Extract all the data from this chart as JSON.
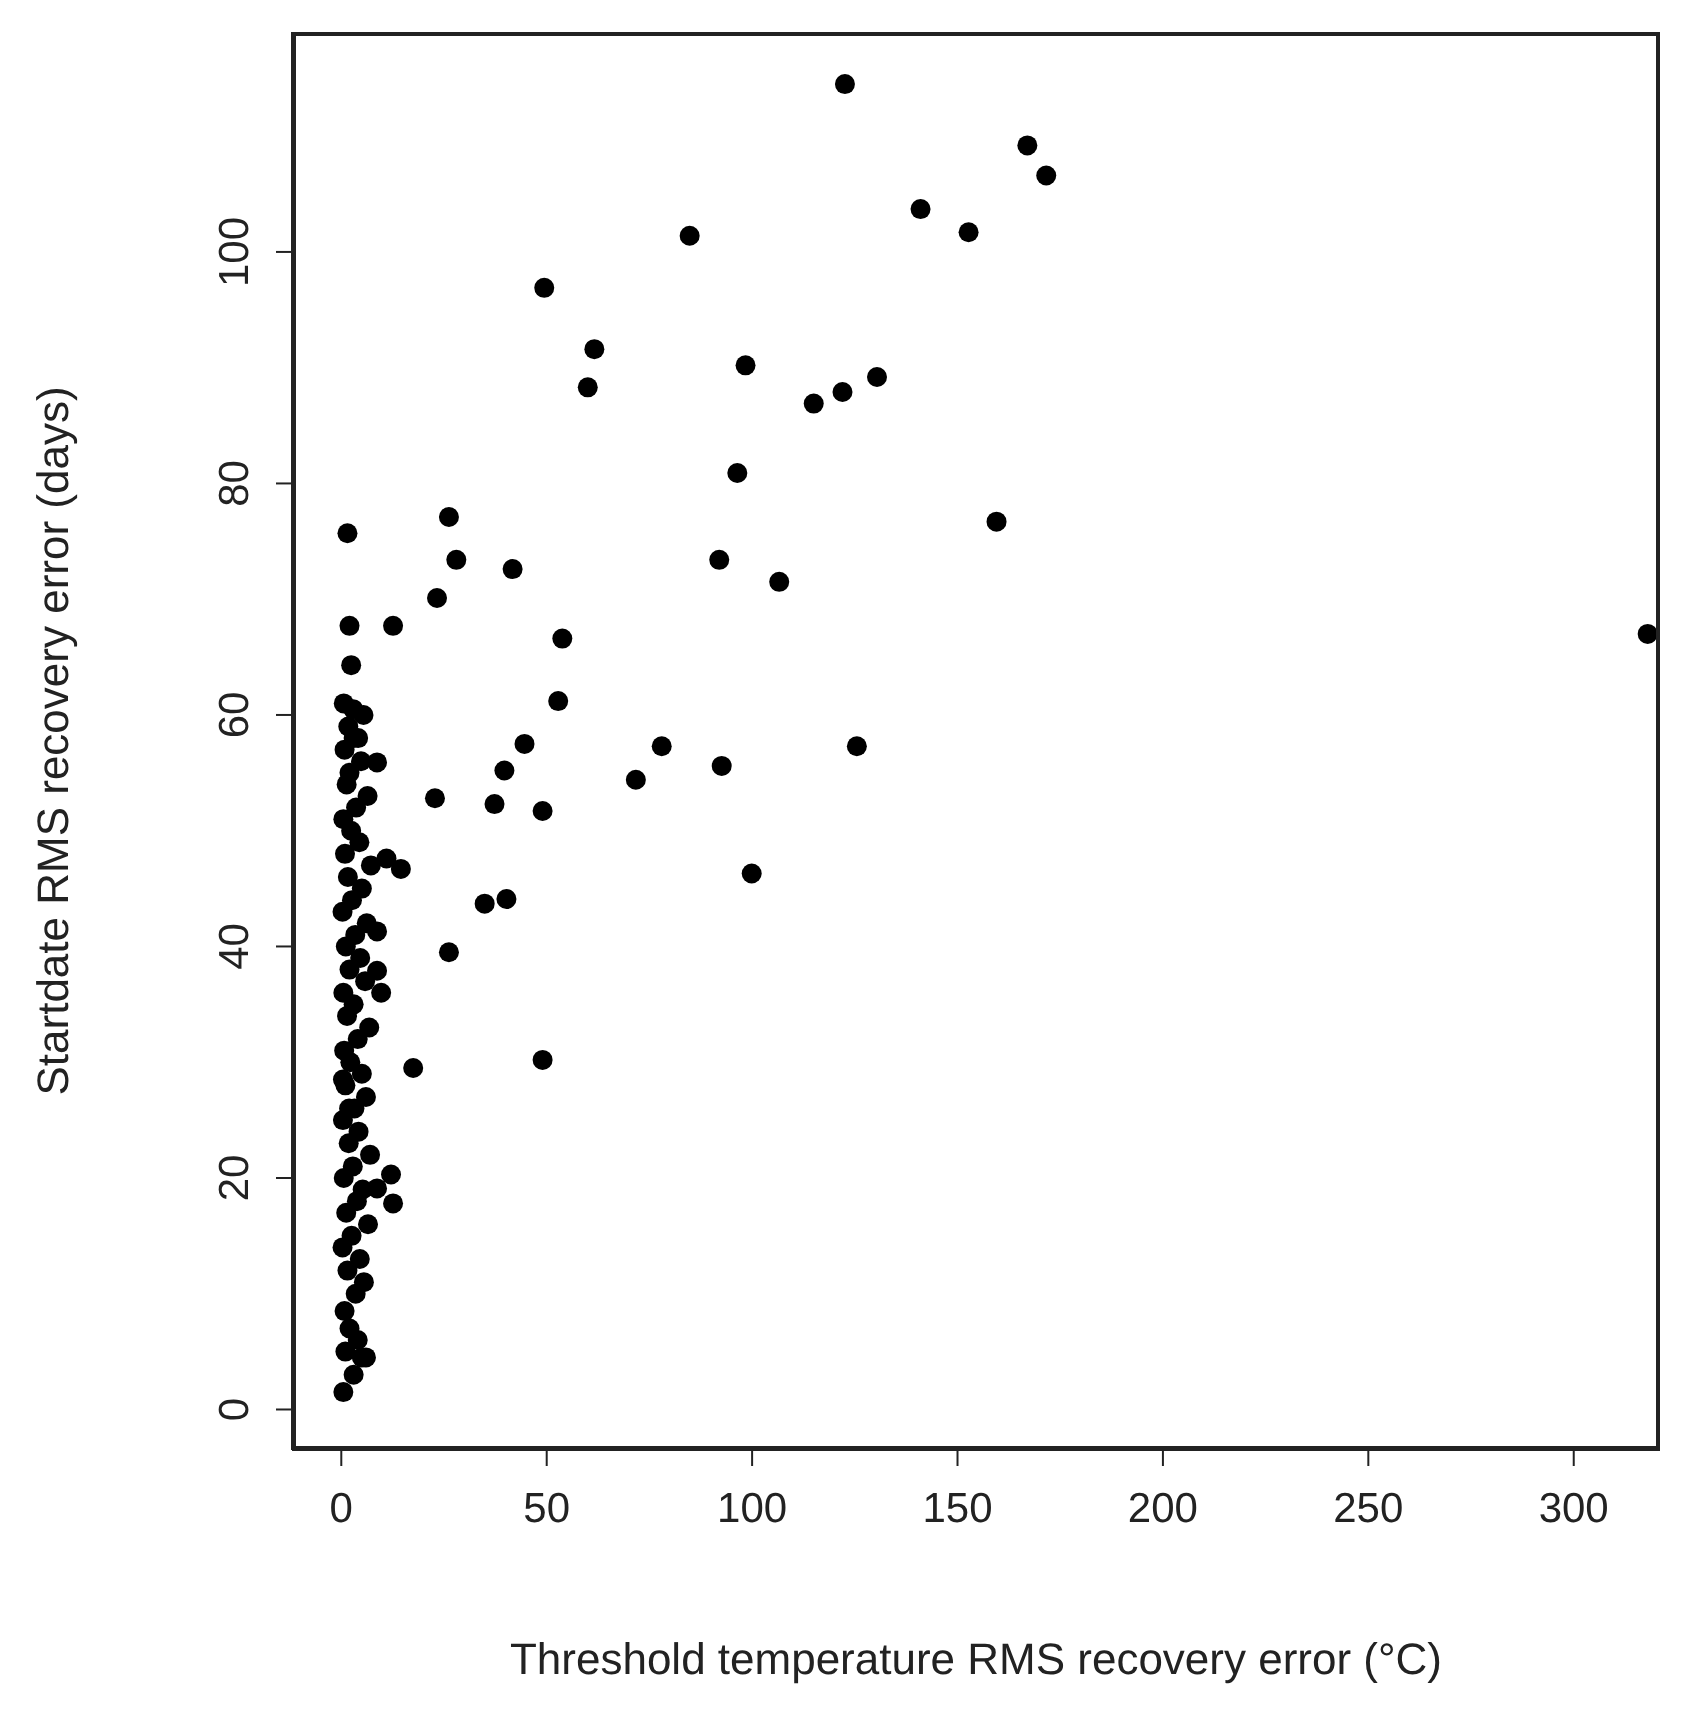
{
  "chart_data": {
    "type": "scatter",
    "xlabel": "Threshold temperature RMS recovery error (°C)",
    "ylabel": "Startdate RMS recovery error (days)",
    "xlim": [
      -12,
      321
    ],
    "ylim": [
      -3.5,
      119
    ],
    "xticks": [
      0,
      50,
      100,
      150,
      200,
      250,
      300
    ],
    "yticks": [
      0,
      20,
      40,
      60,
      80,
      100
    ],
    "grid": false,
    "legend": false,
    "marker": "circle",
    "series": [
      {
        "color": "#000000",
        "x": [
          122.6,
          167,
          171.6,
          141,
          152.7,
          84.8,
          49.4,
          61.6,
          98.4,
          60,
          130.4,
          122,
          115,
          96.4,
          159.5,
          26.2,
          1.5,
          28,
          92,
          41.7,
          106.6,
          23.3,
          2,
          12.6,
          318,
          53.8,
          2.4,
          52.8,
          44.6,
          39.7,
          22.8,
          37.3,
          49,
          71.7,
          78,
          92.6,
          125.5,
          99.9,
          14.5,
          34.9,
          40.2,
          26.2,
          17.5,
          49,
          8.7,
          11,
          8.7,
          8.7,
          9.7,
          12.1,
          12.6,
          8.7,
          0.5,
          3,
          5,
          1,
          4,
          2,
          6,
          0.8,
          3.5,
          5.5,
          1.5,
          4.5,
          0.3,
          2.5,
          6.5,
          1.2,
          3.8,
          5.2,
          0.6,
          2.8,
          7,
          1.8,
          4.2,
          0.4,
          3.2,
          6,
          1,
          5,
          2.2,
          0.7,
          4,
          6.8,
          1.4,
          3,
          0.5,
          5.8,
          2,
          4.6,
          1.1,
          3.4,
          6.2,
          0.3,
          2.6,
          5,
          1.6,
          7.2,
          0.9,
          4.4,
          2.4,
          0.5,
          3.6,
          6.4,
          1.3,
          2,
          4.8,
          0.8,
          3,
          1.7,
          5.4,
          0.6,
          2.9,
          4.1,
          1.9,
          0.4
        ],
        "values": [
          114.5,
          109.2,
          106.6,
          103.7,
          101.7,
          101.4,
          96.9,
          91.6,
          90.2,
          88.3,
          89.2,
          87.9,
          86.9,
          80.9,
          76.7,
          77.1,
          75.7,
          73.4,
          73.4,
          72.6,
          71.5,
          70.1,
          67.7,
          67.7,
          67,
          66.6,
          64.3,
          61.2,
          57.5,
          55.2,
          52.8,
          52.3,
          51.7,
          54.4,
          57.3,
          55.6,
          57.3,
          46.3,
          46.7,
          43.7,
          44.1,
          39.5,
          29.5,
          30.2,
          55.9,
          47.6,
          41.3,
          37.9,
          36,
          20.3,
          17.8,
          19.1,
          1.5,
          3,
          4.5,
          5,
          6,
          7,
          4.5,
          8.5,
          10,
          11,
          12,
          13,
          14,
          15,
          16,
          17,
          18,
          19,
          20,
          21,
          22,
          23,
          24,
          25,
          26,
          27,
          28,
          29,
          30,
          31,
          32,
          33,
          34,
          35,
          36,
          37,
          38,
          39,
          40,
          41,
          42,
          43,
          44,
          45,
          46,
          47,
          48,
          49,
          50,
          51,
          52,
          53,
          54,
          55,
          56,
          57,
          58,
          59,
          60,
          61,
          60.5,
          58,
          26,
          28.5
        ]
      }
    ]
  }
}
